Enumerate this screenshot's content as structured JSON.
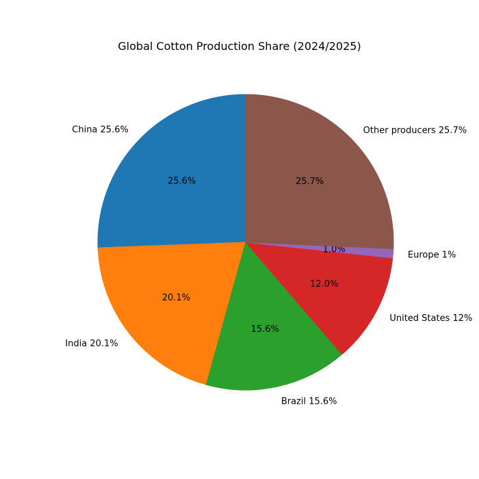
{
  "page": {
    "background_color": "#ffffff",
    "text_color": "#000000"
  },
  "chart_data": {
    "type": "pie",
    "title": "Global Cotton Production Share (2024/2025)",
    "start_angle": 90,
    "direction": "counterclockwise",
    "label_distance": 1.1,
    "pct_distance": 0.6,
    "legend": "none",
    "slices": [
      {
        "label": "China",
        "value": 25.6,
        "pct_label": "25.6%",
        "outer_label": "China 25.6%",
        "color": "#1f77b4"
      },
      {
        "label": "India",
        "value": 20.1,
        "pct_label": "20.1%",
        "outer_label": "India 20.1%",
        "color": "#ff7f0e"
      },
      {
        "label": "Brazil",
        "value": 15.6,
        "pct_label": "15.6%",
        "outer_label": "Brazil 15.6%",
        "color": "#2ca02c"
      },
      {
        "label": "United States",
        "value": 12.0,
        "pct_label": "12.0%",
        "outer_label": "United States 12%",
        "color": "#d62728"
      },
      {
        "label": "Europe",
        "value": 1.0,
        "pct_label": "1.0%",
        "outer_label": "Europe 1%",
        "color": "#9467bd"
      },
      {
        "label": "Other producers",
        "value": 25.7,
        "pct_label": "25.7%",
        "outer_label": "Other producers 25.7%",
        "color": "#8c564b"
      }
    ]
  }
}
